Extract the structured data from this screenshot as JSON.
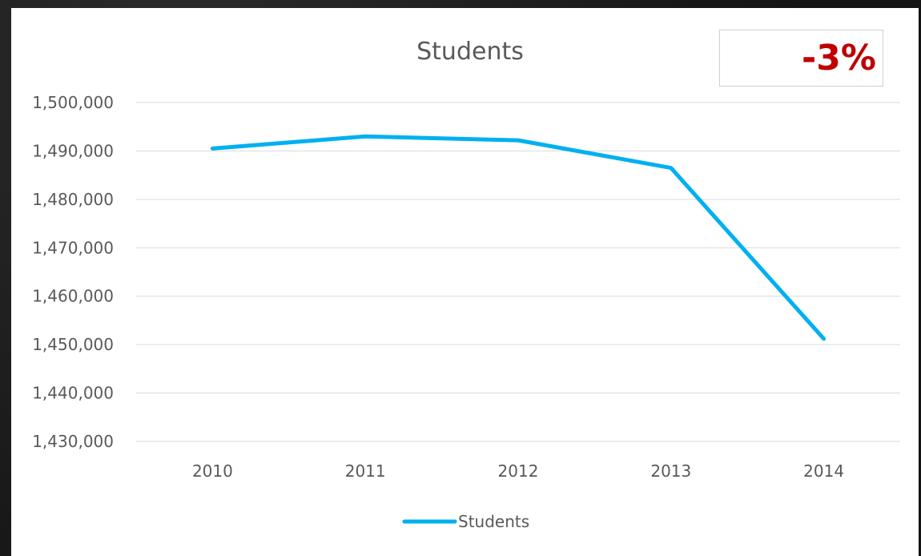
{
  "chart_data": {
    "type": "line",
    "title": "Students",
    "xlabel": "",
    "ylabel": "",
    "categories": [
      "2010",
      "2011",
      "2012",
      "2013",
      "2014"
    ],
    "series": [
      {
        "name": "Students",
        "values": [
          1490500,
          1493000,
          1492200,
          1486500,
          1451200
        ]
      }
    ],
    "y_ticks": [
      "1,430,000",
      "1,440,000",
      "1,450,000",
      "1,460,000",
      "1,470,000",
      "1,480,000",
      "1,490,000",
      "1,500,000"
    ],
    "ylim": [
      1430000,
      1500000
    ],
    "y_step": 10000,
    "grid": true,
    "legend_position": "bottom"
  },
  "annotation": {
    "change_label": "-3%"
  },
  "colors": {
    "series": "#00b0f0",
    "change_text": "#c00000"
  }
}
